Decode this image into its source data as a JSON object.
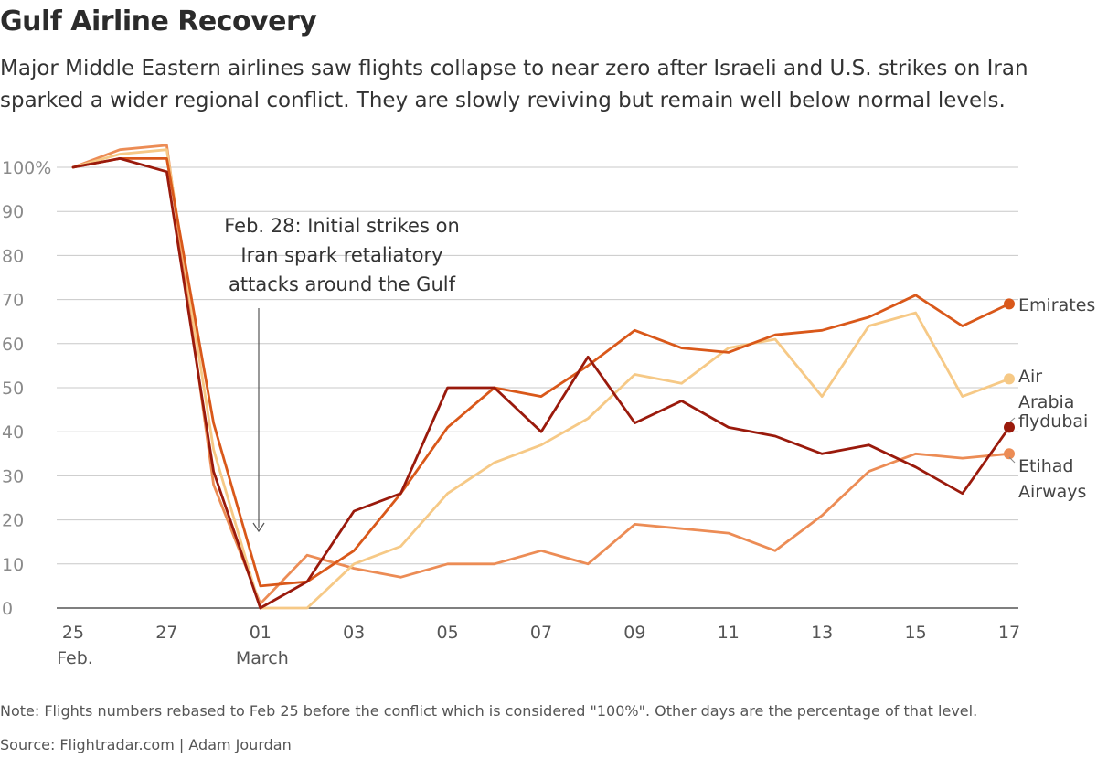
{
  "title": "Gulf Airline Recovery",
  "subtitle": "Major Middle Eastern airlines saw flights collapse to near zero after Israeli and U.S. strikes on Iran sparked a wider regional conflict. They are slowly reviving but remain well below normal levels.",
  "note": "Note: Flights numbers rebased to Feb 25 before the conflict which is considered \"100%\". Other days are the percentage of that level.",
  "source": "Source: Flightradar.com | Adam Jourdan",
  "annotation": {
    "lines": [
      "Feb. 28: Initial strikes on",
      "Iran spark retaliatory",
      "attacks around the Gulf"
    ]
  },
  "chart_data": {
    "type": "line",
    "title": "Gulf Airline Recovery",
    "xlabel": "",
    "ylabel": "",
    "ylim": [
      0,
      100
    ],
    "yticks": [
      "0",
      "10",
      "20",
      "30",
      "40",
      "50",
      "60",
      "70",
      "80",
      "90",
      "100%"
    ],
    "xtick_labels": [
      {
        "index": 0,
        "label": "25",
        "sub": "Feb."
      },
      {
        "index": 2,
        "label": "27",
        "sub": ""
      },
      {
        "index": 4,
        "label": "01",
        "sub": "March"
      },
      {
        "index": 6,
        "label": "03",
        "sub": ""
      },
      {
        "index": 8,
        "label": "05",
        "sub": ""
      },
      {
        "index": 10,
        "label": "07",
        "sub": ""
      },
      {
        "index": 12,
        "label": "09",
        "sub": ""
      },
      {
        "index": 14,
        "label": "11",
        "sub": ""
      },
      {
        "index": 16,
        "label": "13",
        "sub": ""
      },
      {
        "index": 18,
        "label": "15",
        "sub": ""
      },
      {
        "index": 20,
        "label": "17",
        "sub": ""
      }
    ],
    "x": [
      "Feb 25",
      "Feb 26",
      "Feb 27",
      "Feb 28",
      "Mar 01",
      "Mar 02",
      "Mar 03",
      "Mar 04",
      "Mar 05",
      "Mar 06",
      "Mar 07",
      "Mar 08",
      "Mar 09",
      "Mar 10",
      "Mar 11",
      "Mar 12",
      "Mar 13",
      "Mar 14",
      "Mar 15",
      "Mar 16",
      "Mar 17"
    ],
    "series": [
      {
        "name": "Emirates",
        "label_lines": [
          "Emirates"
        ],
        "color": "#d9581a",
        "values": [
          100,
          102,
          102,
          42,
          5,
          6,
          13,
          26,
          41,
          50,
          48,
          55,
          63,
          59,
          58,
          62,
          63,
          66,
          71,
          64,
          69
        ]
      },
      {
        "name": "Air Arabia",
        "label_lines": [
          "Air",
          "Arabia"
        ],
        "color": "#f6c986",
        "values": [
          100,
          103,
          104,
          36,
          0,
          0,
          10,
          14,
          26,
          33,
          37,
          43,
          53,
          51,
          59,
          61,
          48,
          64,
          67,
          48,
          52
        ]
      },
      {
        "name": "flydubai",
        "label_lines": [
          "flydubai"
        ],
        "color": "#9a1a0c",
        "values": [
          100,
          102,
          99,
          31,
          0,
          6,
          22,
          26,
          50,
          50,
          40,
          57,
          42,
          47,
          41,
          39,
          35,
          37,
          32,
          26,
          41
        ]
      },
      {
        "name": "Etihad Airways",
        "label_lines": [
          "Etihad",
          "Airways"
        ],
        "color": "#ec8c55",
        "values": [
          100,
          104,
          105,
          28,
          1,
          12,
          9,
          7,
          10,
          10,
          13,
          10,
          19,
          18,
          17,
          13,
          21,
          31,
          35,
          34,
          35
        ]
      }
    ]
  }
}
